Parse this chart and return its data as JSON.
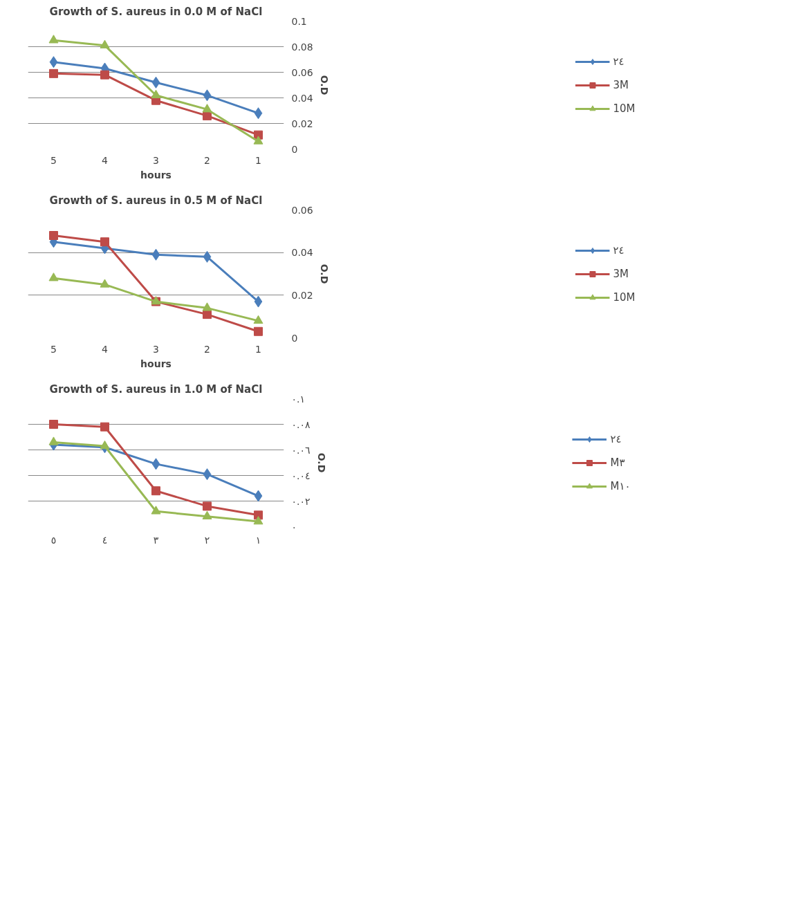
{
  "chart_data": [
    {
      "type": "line",
      "title": "Growth of S. aureus in 0.0 M of NaCl",
      "xlabel": "hours",
      "ylabel": "O.D",
      "categories": [
        "5",
        "4",
        "3",
        "2",
        "1"
      ],
      "ylim": [
        0,
        0.1
      ],
      "yticks": [
        0,
        0.02,
        0.04,
        0.06,
        0.08,
        0.1
      ],
      "grid": "y",
      "legend": "right",
      "series": [
        {
          "name": "٢٤",
          "color": "#4a7ebb",
          "marker": "diamond",
          "values": [
            0.068,
            0.063,
            0.052,
            0.042,
            0.028
          ]
        },
        {
          "name": "3M",
          "color": "#be4b48",
          "marker": "square",
          "values": [
            0.059,
            0.058,
            0.038,
            0.026,
            0.011
          ]
        },
        {
          "name": "10M",
          "color": "#98b954",
          "marker": "triangle",
          "values": [
            0.085,
            0.081,
            0.042,
            0.031,
            0.006
          ]
        }
      ]
    },
    {
      "type": "line",
      "title": "Growth of S. aureus in 0.5 M of NaCl",
      "xlabel": "hours",
      "ylabel": "O.D",
      "categories": [
        "5",
        "4",
        "3",
        "2",
        "1"
      ],
      "ylim": [
        0,
        0.06
      ],
      "yticks": [
        0,
        0.02,
        0.04,
        0.06
      ],
      "grid": "y",
      "legend": "right",
      "series": [
        {
          "name": "٢٤",
          "color": "#4a7ebb",
          "marker": "diamond",
          "values": [
            0.045,
            0.042,
            0.039,
            0.038,
            0.017
          ]
        },
        {
          "name": "3M",
          "color": "#be4b48",
          "marker": "square",
          "values": [
            0.048,
            0.045,
            0.017,
            0.011,
            0.003
          ]
        },
        {
          "name": "10M",
          "color": "#98b954",
          "marker": "triangle",
          "values": [
            0.028,
            0.025,
            0.017,
            0.014,
            0.008
          ]
        }
      ]
    },
    {
      "type": "line",
      "title": "Growth of S. aureus in 1.0 M of NaCl",
      "ylabel": "O.D",
      "categories": [
        "٥",
        "٤",
        "٣",
        "٢",
        "١"
      ],
      "ylim": [
        0,
        0.1
      ],
      "yticks": [
        {
          "value": 0,
          "label": "٠"
        },
        {
          "value": 0.02,
          "label": "٠.٠٢"
        },
        {
          "value": 0.04,
          "label": "٠.٠٤"
        },
        {
          "value": 0.06,
          "label": "٠.٠٦"
        },
        {
          "value": 0.08,
          "label": "٠.٠٨"
        },
        {
          "value": 0.1,
          "label": "٠.١"
        }
      ],
      "grid": "y",
      "legend": "right",
      "series": [
        {
          "name": "٢٤",
          "color": "#4a7ebb",
          "marker": "diamond",
          "values": [
            0.064,
            0.062,
            0.049,
            0.041,
            0.024
          ]
        },
        {
          "name": "M٣",
          "color": "#be4b48",
          "marker": "square",
          "values": [
            0.08,
            0.078,
            0.028,
            0.016,
            0.009
          ]
        },
        {
          "name": "M١٠",
          "color": "#98b954",
          "marker": "triangle",
          "values": [
            0.066,
            0.063,
            0.012,
            0.008,
            0.004
          ]
        }
      ]
    }
  ]
}
